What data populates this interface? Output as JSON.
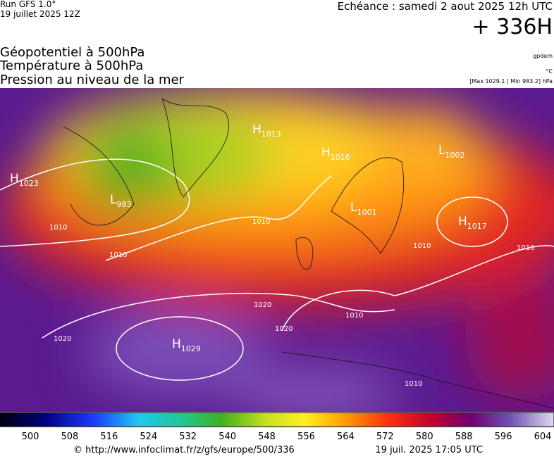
{
  "header": {
    "run": "Run GFS 1.0°",
    "run_date": "19 juillet 2025 12Z",
    "valid": "Echéance : samedi 2 aout 2025 12h UTC",
    "lead": "+ 336H"
  },
  "titles": [
    "Géopotentiel à 500hPa",
    "Température à 500hPa",
    "Pression au niveau de la mer"
  ],
  "units": [
    "gpdam",
    "°C",
    "[Max 1029.1 | Min 983.2] hPa"
  ],
  "pressure_centers": [
    {
      "letter": "H",
      "value": "1023"
    },
    {
      "letter": "L",
      "value": "983"
    },
    {
      "letter": "H",
      "value": "1013"
    },
    {
      "letter": "H",
      "value": "1016"
    },
    {
      "letter": "L",
      "value": "1001"
    },
    {
      "letter": "L",
      "value": "1002"
    },
    {
      "letter": "H",
      "value": "1017"
    },
    {
      "letter": "H",
      "value": "1029"
    }
  ],
  "isobar_labels": [
    "1010",
    "1010",
    "1010",
    "1010",
    "1010",
    "1010",
    "1010",
    "1020",
    "1020",
    "1020"
  ],
  "colorbar": {
    "ticks": [
      500,
      508,
      516,
      524,
      532,
      540,
      548,
      556,
      564,
      572,
      580,
      588,
      596,
      604
    ]
  },
  "footer": {
    "url": "© http://www.infoclimat.fr/z/gfs/europe/500/336",
    "timestamp": "19 juil. 2025 17:05 UTC"
  }
}
